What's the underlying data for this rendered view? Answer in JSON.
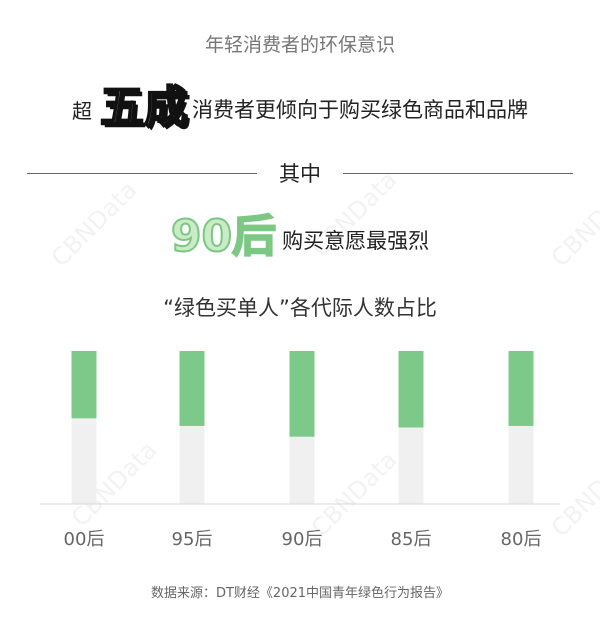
{
  "subtitle": "年轻消费者的环保意识",
  "headline": {
    "prefix": "超",
    "emphasis": "五成",
    "suffix": "消费者更倾向于购买绿色商品和品牌"
  },
  "divider_label": "其中",
  "highlight": {
    "emphasis": "90后",
    "suffix": "购买意愿最强烈"
  },
  "watermark": "CBNData",
  "source": "数据来源：DT财经《2021中国青年绿色行为报告》",
  "colors": {
    "green": "#7dc98a",
    "track": "#f0f0f0",
    "axis": "#d8d8d8"
  },
  "chart_data": {
    "type": "bar",
    "stacked": true,
    "title": "“绿色买单人”各代际人数占比",
    "categories": [
      "00后",
      "95后",
      "90后",
      "85后",
      "80后"
    ],
    "values_percent": [
      44,
      49,
      56,
      50,
      49
    ],
    "ylim": [
      0,
      100
    ],
    "grid": false
  }
}
